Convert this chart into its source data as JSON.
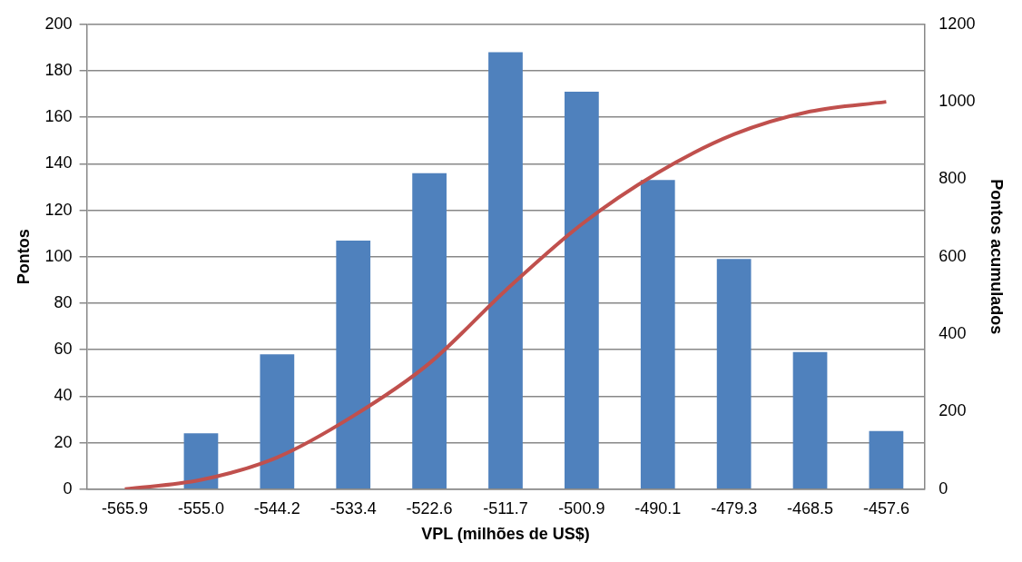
{
  "chart_data": {
    "type": "bar",
    "xlabel": "VPL (milhões de US$)",
    "ylabel": "Pontos",
    "y2label": "Pontos acumulados",
    "categories": [
      "-565.9",
      "-555.0",
      "-544.2",
      "-533.4",
      "-522.6",
      "-511.7",
      "-500.9",
      "-490.1",
      "-479.3",
      "-468.5",
      "-457.6"
    ],
    "series": [
      {
        "color": "#4f81bd",
        "values": [
          0,
          24,
          58,
          107,
          136,
          188,
          171,
          133,
          99,
          59,
          25
        ]
      },
      {
        "type": "line",
        "axis": "y2",
        "color": "#c0504d",
        "marker": "none",
        "values": [
          0,
          24,
          82,
          189,
          325,
          513,
          684,
          817,
          916,
          975,
          1000
        ]
      }
    ],
    "ylim": [
      0,
      200
    ],
    "yticks": [
      0,
      20,
      40,
      60,
      80,
      100,
      120,
      140,
      160,
      180,
      200
    ],
    "y2lim": [
      0,
      1200
    ],
    "y2ticks": [
      0,
      200,
      400,
      600,
      800,
      1000,
      1200
    ],
    "grid": "y",
    "legend": false
  }
}
